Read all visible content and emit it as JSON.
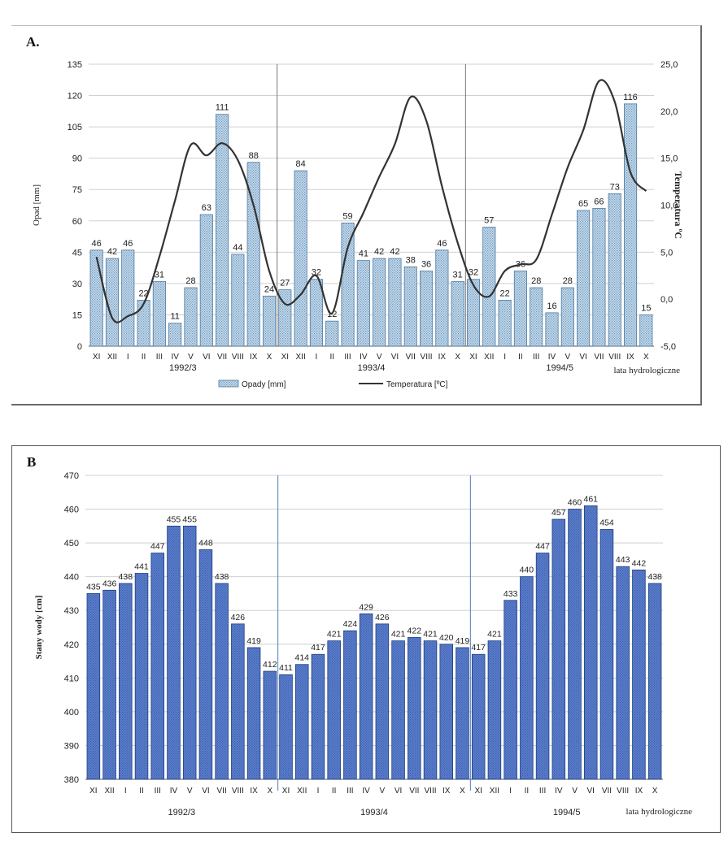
{
  "panels": {
    "a_label": "A.",
    "b_label": "B"
  },
  "chart_data": [
    {
      "id": "A",
      "type": "bar",
      "categories": [
        "XI",
        "XII",
        "I",
        "II",
        "III",
        "IV",
        "V",
        "VI",
        "VII",
        "VIII",
        "IX",
        "X",
        "XI",
        "XII",
        "I",
        "II",
        "III",
        "IV",
        "V",
        "VI",
        "VII",
        "VIII",
        "IX",
        "X",
        "XI",
        "XII",
        "I",
        "II",
        "III",
        "IV",
        "V",
        "VI",
        "VII",
        "VIII",
        "IX",
        "X"
      ],
      "series": [
        {
          "name": "Opady [mm]",
          "kind": "bar",
          "axis": "left",
          "values": [
            46,
            42,
            46,
            22,
            31,
            11,
            28,
            63,
            111,
            44,
            88,
            24,
            27,
            84,
            32,
            12,
            59,
            41,
            42,
            42,
            38,
            36,
            46,
            31,
            32,
            57,
            22,
            36,
            28,
            16,
            28,
            65,
            66,
            73,
            116,
            15
          ]
        },
        {
          "name": "Temperatura [ºC]",
          "kind": "line",
          "axis": "right",
          "values": [
            4.5,
            -2.0,
            -1.8,
            -0.5,
            4.5,
            10.5,
            16.4,
            15.3,
            16.6,
            14.8,
            10.0,
            3.0,
            -0.5,
            0.5,
            2.5,
            -1.5,
            5.5,
            9.2,
            13.0,
            16.5,
            21.5,
            19.0,
            12.0,
            6.0,
            1.5,
            0.3,
            3.0,
            3.7,
            4.2,
            9.0,
            14.0,
            18.0,
            23.2,
            21.0,
            13.5,
            11.5
          ]
        }
      ],
      "labels": [
        "46",
        "42",
        "46",
        "22",
        "31",
        "11",
        "28",
        "63",
        "111",
        "44",
        "88",
        "24",
        "27",
        "84",
        "32",
        "12",
        "59",
        "41",
        "42",
        "42",
        "38",
        "36",
        "46",
        "31",
        "32",
        "57",
        "22",
        "36",
        "28",
        "16",
        "28",
        "65",
        "66",
        "73",
        "116",
        "15"
      ],
      "ylabel": "Opad [mm]",
      "y2label": "Temperatura ºC",
      "ylim": [
        0,
        135
      ],
      "yticks": [
        0,
        15,
        30,
        45,
        60,
        75,
        90,
        105,
        120,
        135
      ],
      "y2lim": [
        -5,
        25
      ],
      "y2ticks": [
        "-5,0",
        "0,0",
        "5,0",
        "10,0",
        "15,0",
        "20,0",
        "25,0"
      ],
      "groups": [
        "1992/3",
        "1993/4",
        "1994/5"
      ],
      "axis_note": "lata hydrologiczne",
      "legend": [
        "Opady [mm]",
        "Temperatura [ºC]"
      ],
      "legend_position": "bottom",
      "colors": {
        "bar_fill": "#a9c7df",
        "bar_stroke": "#4f7aa0",
        "line": "#333333",
        "grid": "#d0d0d0"
      }
    },
    {
      "id": "B",
      "type": "bar",
      "categories": [
        "XI",
        "XII",
        "I",
        "II",
        "III",
        "IV",
        "V",
        "VI",
        "VII",
        "VIII",
        "IX",
        "X",
        "XI",
        "XII",
        "I",
        "II",
        "III",
        "IV",
        "V",
        "VI",
        "VII",
        "VIII",
        "IX",
        "X",
        "XI",
        "XII",
        "I",
        "II",
        "III",
        "IV",
        "V",
        "VI",
        "VII",
        "VIII",
        "IX",
        "X"
      ],
      "series": [
        {
          "name": "Stany wody [cm]",
          "kind": "bar",
          "values": [
            435,
            436,
            438,
            441,
            447,
            455,
            455,
            448,
            438,
            426,
            419,
            412,
            411,
            414,
            417,
            421,
            424,
            429,
            426,
            421,
            422,
            421,
            420,
            419,
            417,
            421,
            433,
            440,
            447,
            457,
            460,
            461,
            454,
            443,
            442,
            438
          ]
        }
      ],
      "labels": [
        "435",
        "436",
        "438",
        "441",
        "447",
        "455",
        "455",
        "448",
        "438",
        "426",
        "419",
        "412",
        "411",
        "414",
        "417",
        "421",
        "424",
        "429",
        "426",
        "421",
        "422",
        "421",
        "420",
        "419",
        "417",
        "421",
        "433",
        "440",
        "447",
        "457",
        "460",
        "461",
        "454",
        "443",
        "442",
        "438"
      ],
      "ylabel": "Stany wody [cm]",
      "ylim": [
        380,
        470
      ],
      "yticks": [
        380,
        390,
        400,
        410,
        420,
        430,
        440,
        450,
        460,
        470
      ],
      "groups": [
        "1992/3",
        "1993/4",
        "1994/5"
      ],
      "axis_note": "lata hydrologiczne",
      "colors": {
        "bar_fill": "#4a6fc0",
        "bar_stroke": "#1f3d80",
        "divider": "#4f7ec0",
        "grid": "#d0d0d0"
      }
    }
  ]
}
